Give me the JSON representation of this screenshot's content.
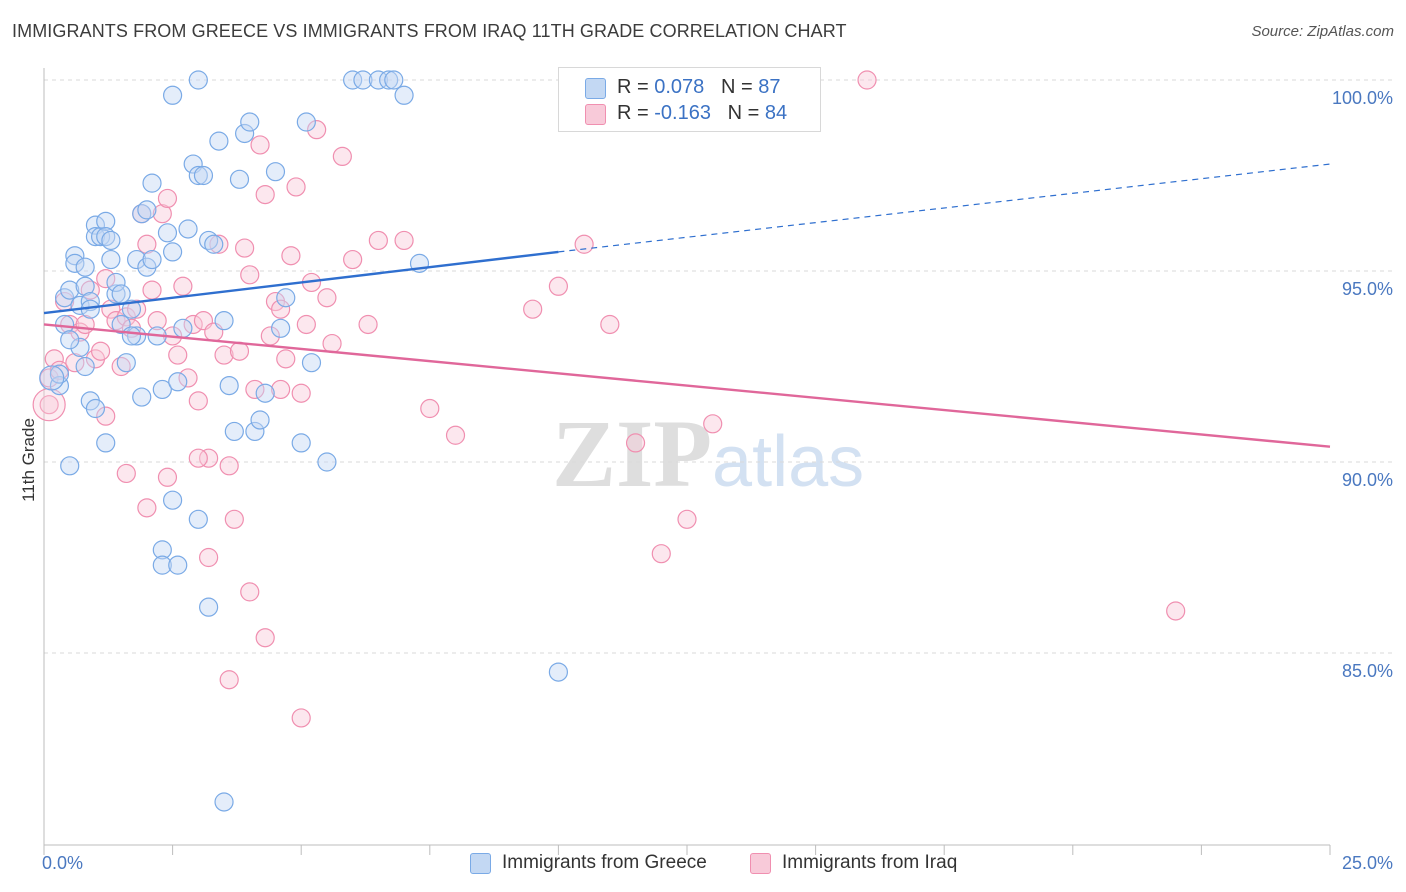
{
  "title": "IMMIGRANTS FROM GREECE VS IMMIGRANTS FROM IRAQ 11TH GRADE CORRELATION CHART",
  "source": "Source: ZipAtlas.com",
  "watermark": {
    "zip": "ZIP",
    "atlas": "atlas"
  },
  "legend": {
    "greece": {
      "r_label": "R = ",
      "r_value": "0.078",
      "n_label": "N = ",
      "n_value": "87"
    },
    "iraq": {
      "r_label": "R = ",
      "r_value": "-0.163",
      "n_label": "N = ",
      "n_value": "84"
    }
  },
  "colors": {
    "greece": "#7aaae6",
    "greece_fill": "#c3d8f3",
    "iraq": "#f08fb0",
    "iraq_fill": "#f8cad9",
    "greece_line": "#2f6fcf",
    "iraq_line": "#e0679a",
    "tick_text": "#4a78c0"
  },
  "chart_data": {
    "type": "scatter",
    "title": "IMMIGRANTS FROM GREECE VS IMMIGRANTS FROM IRAQ 11TH GRADE CORRELATION CHART",
    "xlabel": "",
    "ylabel": "11th Grade",
    "xlim": [
      0,
      25
    ],
    "ylim": [
      80.5,
      100.5
    ],
    "x_tick_labels": [
      "0.0%",
      "25.0%"
    ],
    "y_tick_labels": [
      "100.0%",
      "95.0%",
      "90.0%",
      "85.0%"
    ],
    "y_ticks": [
      100,
      95,
      90,
      85
    ],
    "grid": "horizontal dashed",
    "legend_position": "top-center",
    "series": [
      {
        "name": "Immigrants from Greece",
        "color": "#7aaae6",
        "trend": {
          "x": [
            0,
            10
          ],
          "y": [
            93.9,
            95.5
          ],
          "dashed_extension": {
            "x": [
              10,
              25
            ],
            "y": [
              95.5,
              97.8
            ]
          }
        },
        "points": [
          [
            0.3,
            92.0
          ],
          [
            0.3,
            92.3
          ],
          [
            0.4,
            93.6
          ],
          [
            0.4,
            94.3
          ],
          [
            0.5,
            94.5
          ],
          [
            0.5,
            89.9
          ],
          [
            0.6,
            95.4
          ],
          [
            0.6,
            95.2
          ],
          [
            0.7,
            94.1
          ],
          [
            0.7,
            93.0
          ],
          [
            0.8,
            95.1
          ],
          [
            0.8,
            94.6
          ],
          [
            0.9,
            94.2
          ],
          [
            0.9,
            94.0
          ],
          [
            0.9,
            91.6
          ],
          [
            1.0,
            96.2
          ],
          [
            1.0,
            95.9
          ],
          [
            1.1,
            95.9
          ],
          [
            1.2,
            96.3
          ],
          [
            1.2,
            95.9
          ],
          [
            1.3,
            95.8
          ],
          [
            1.3,
            95.3
          ],
          [
            1.4,
            94.4
          ],
          [
            1.4,
            94.7
          ],
          [
            1.5,
            93.6
          ],
          [
            1.5,
            94.4
          ],
          [
            1.6,
            92.6
          ],
          [
            1.7,
            94.0
          ],
          [
            1.8,
            93.3
          ],
          [
            1.8,
            95.3
          ],
          [
            1.9,
            96.5
          ],
          [
            1.9,
            91.7
          ],
          [
            2.0,
            96.6
          ],
          [
            2.0,
            95.1
          ],
          [
            2.1,
            97.3
          ],
          [
            2.1,
            95.3
          ],
          [
            2.2,
            93.3
          ],
          [
            2.3,
            91.9
          ],
          [
            2.4,
            96.0
          ],
          [
            2.5,
            95.5
          ],
          [
            2.6,
            92.1
          ],
          [
            2.7,
            93.5
          ],
          [
            2.8,
            96.1
          ],
          [
            2.9,
            97.8
          ],
          [
            3.0,
            97.5
          ],
          [
            3.1,
            97.5
          ],
          [
            3.2,
            95.8
          ],
          [
            3.3,
            95.7
          ],
          [
            3.4,
            98.4
          ],
          [
            3.5,
            93.7
          ],
          [
            3.6,
            92.0
          ],
          [
            3.7,
            90.8
          ],
          [
            3.8,
            97.4
          ],
          [
            3.9,
            98.6
          ],
          [
            4.0,
            98.9
          ],
          [
            4.1,
            90.8
          ],
          [
            4.2,
            91.1
          ],
          [
            4.3,
            91.8
          ],
          [
            4.5,
            97.6
          ],
          [
            4.6,
            93.5
          ],
          [
            4.7,
            94.3
          ],
          [
            5.0,
            90.5
          ],
          [
            5.1,
            98.9
          ],
          [
            5.2,
            92.6
          ],
          [
            5.5,
            90.0
          ],
          [
            6.0,
            100.0
          ],
          [
            6.2,
            100.0
          ],
          [
            6.5,
            100.0
          ],
          [
            6.7,
            100.0
          ],
          [
            6.8,
            100.0
          ],
          [
            3.0,
            100.0
          ],
          [
            2.5,
            99.6
          ],
          [
            7.0,
            99.6
          ],
          [
            7.3,
            95.2
          ],
          [
            1.0,
            91.4
          ],
          [
            1.2,
            90.5
          ],
          [
            1.7,
            93.3
          ],
          [
            2.3,
            87.7
          ],
          [
            2.3,
            87.3
          ],
          [
            2.5,
            89.0
          ],
          [
            2.6,
            87.3
          ],
          [
            3.0,
            88.5
          ],
          [
            3.2,
            86.2
          ],
          [
            3.5,
            81.1
          ],
          [
            10.0,
            84.5
          ],
          [
            0.5,
            93.2
          ],
          [
            0.8,
            92.5
          ]
        ]
      },
      {
        "name": "Immigrants from Iraq",
        "color": "#f08fb0",
        "trend": {
          "x": [
            0,
            25
          ],
          "y": [
            93.6,
            90.4
          ]
        },
        "points": [
          [
            0.1,
            91.5
          ],
          [
            0.1,
            92.2
          ],
          [
            0.2,
            92.7
          ],
          [
            0.3,
            92.4
          ],
          [
            0.4,
            94.2
          ],
          [
            0.5,
            93.6
          ],
          [
            0.6,
            92.6
          ],
          [
            0.7,
            93.4
          ],
          [
            0.8,
            93.6
          ],
          [
            0.9,
            94.5
          ],
          [
            1.0,
            92.7
          ],
          [
            1.1,
            92.9
          ],
          [
            1.2,
            94.8
          ],
          [
            1.3,
            94.0
          ],
          [
            1.4,
            93.7
          ],
          [
            1.5,
            92.5
          ],
          [
            1.6,
            93.8
          ],
          [
            1.7,
            93.5
          ],
          [
            1.8,
            94.0
          ],
          [
            1.9,
            96.5
          ],
          [
            2.0,
            95.7
          ],
          [
            2.1,
            94.5
          ],
          [
            2.2,
            93.7
          ],
          [
            2.3,
            96.5
          ],
          [
            2.4,
            96.9
          ],
          [
            2.5,
            93.3
          ],
          [
            2.6,
            92.8
          ],
          [
            2.7,
            94.6
          ],
          [
            2.8,
            92.2
          ],
          [
            2.9,
            93.6
          ],
          [
            3.0,
            91.6
          ],
          [
            3.1,
            93.7
          ],
          [
            3.2,
            90.1
          ],
          [
            3.3,
            93.4
          ],
          [
            3.4,
            95.7
          ],
          [
            3.5,
            92.8
          ],
          [
            3.6,
            89.9
          ],
          [
            3.7,
            88.5
          ],
          [
            3.8,
            92.9
          ],
          [
            3.9,
            95.6
          ],
          [
            4.0,
            94.9
          ],
          [
            4.1,
            91.9
          ],
          [
            4.2,
            98.3
          ],
          [
            4.3,
            97.0
          ],
          [
            4.4,
            93.3
          ],
          [
            4.5,
            94.2
          ],
          [
            4.6,
            94.0
          ],
          [
            4.7,
            92.7
          ],
          [
            4.8,
            95.4
          ],
          [
            4.9,
            97.2
          ],
          [
            5.0,
            91.8
          ],
          [
            5.1,
            93.6
          ],
          [
            5.2,
            94.7
          ],
          [
            5.3,
            98.7
          ],
          [
            5.5,
            94.3
          ],
          [
            5.6,
            93.1
          ],
          [
            5.8,
            98.0
          ],
          [
            6.0,
            95.3
          ],
          [
            6.3,
            93.6
          ],
          [
            6.5,
            95.8
          ],
          [
            7.0,
            95.8
          ],
          [
            7.5,
            91.4
          ],
          [
            8.0,
            90.7
          ],
          [
            9.5,
            94.0
          ],
          [
            10.0,
            94.6
          ],
          [
            10.5,
            95.7
          ],
          [
            11.0,
            93.6
          ],
          [
            11.5,
            90.5
          ],
          [
            12.0,
            87.6
          ],
          [
            12.5,
            88.5
          ],
          [
            13.0,
            91.0
          ],
          [
            16.0,
            100.0
          ],
          [
            22.0,
            86.1
          ],
          [
            1.2,
            91.2
          ],
          [
            1.6,
            89.7
          ],
          [
            2.0,
            88.8
          ],
          [
            2.4,
            89.6
          ],
          [
            3.0,
            90.1
          ],
          [
            3.2,
            87.5
          ],
          [
            4.0,
            86.6
          ],
          [
            4.3,
            85.4
          ],
          [
            3.6,
            84.3
          ],
          [
            5.0,
            83.3
          ],
          [
            4.6,
            91.9
          ]
        ]
      }
    ]
  },
  "bottom_legend": [
    "Immigrants from Greece",
    "Immigrants from Iraq"
  ]
}
